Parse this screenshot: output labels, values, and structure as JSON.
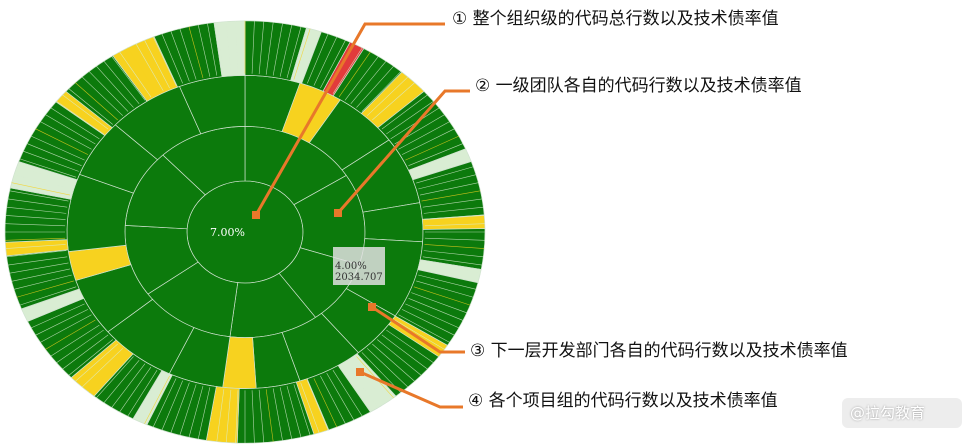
{
  "chart_data": {
    "type": "sunburst",
    "center_label": "7.00%",
    "tooltip": {
      "percent": "4.00%",
      "value": "2034.707"
    },
    "colors": {
      "ok": "#0c7a0c",
      "warning": "#f7d21f",
      "critical": "#e23b3b",
      "light": "#d9edd3",
      "ring_line": "#cfe2cf",
      "callout_line": "#e8782a"
    },
    "rings": [
      {
        "level": 1,
        "segments": [
          {
            "share": 1,
            "status": "ok"
          }
        ]
      },
      {
        "level": 2,
        "segments": [
          {
            "share": 0.16,
            "status": "ok"
          },
          {
            "share": 0.14,
            "status": "ok"
          },
          {
            "share": 0.1,
            "status": "ok"
          },
          {
            "share": 0.12,
            "status": "ok"
          },
          {
            "share": 0.13,
            "status": "ok"
          },
          {
            "share": 0.11,
            "status": "ok"
          },
          {
            "share": 0.12,
            "status": "ok"
          },
          {
            "share": 0.12,
            "status": "ok"
          }
        ]
      },
      {
        "level": 3,
        "segments": [
          {
            "share": 0.05,
            "status": "ok"
          },
          {
            "share": 0.04,
            "status": "warning"
          },
          {
            "share": 0.06,
            "status": "ok"
          },
          {
            "share": 0.07,
            "status": "ok"
          },
          {
            "share": 0.04,
            "status": "ok"
          },
          {
            "share": 0.08,
            "status": "ok"
          },
          {
            "share": 0.05,
            "status": "ok"
          },
          {
            "share": 0.06,
            "status": "ok"
          },
          {
            "share": 0.04,
            "status": "ok"
          },
          {
            "share": 0.03,
            "status": "warning"
          },
          {
            "share": 0.05,
            "status": "ok"
          },
          {
            "share": 0.07,
            "status": "ok"
          },
          {
            "share": 0.06,
            "status": "ok"
          },
          {
            "share": 0.03,
            "status": "warning"
          },
          {
            "share": 0.08,
            "status": "ok"
          },
          {
            "share": 0.06,
            "status": "ok"
          },
          {
            "share": 0.07,
            "status": "ok"
          },
          {
            "share": 0.06,
            "status": "ok"
          }
        ]
      },
      {
        "level": 4,
        "segments": [
          {
            "share": 0.04,
            "status": "ok"
          },
          {
            "share": 0.01,
            "status": "light"
          },
          {
            "share": 0.02,
            "status": "ok"
          },
          {
            "share": 0.01,
            "status": "critical"
          },
          {
            "share": 0.03,
            "status": "ok"
          },
          {
            "share": 0.02,
            "status": "warning"
          },
          {
            "share": 0.05,
            "status": "ok"
          },
          {
            "share": 0.01,
            "status": "light"
          },
          {
            "share": 0.04,
            "status": "ok"
          },
          {
            "share": 0.01,
            "status": "warning"
          },
          {
            "share": 0.03,
            "status": "ok"
          },
          {
            "share": 0.01,
            "status": "light"
          },
          {
            "share": 0.05,
            "status": "ok"
          },
          {
            "share": 0.01,
            "status": "warning"
          },
          {
            "share": 0.04,
            "status": "ok"
          },
          {
            "share": 0.02,
            "status": "light"
          },
          {
            "share": 0.03,
            "status": "ok"
          },
          {
            "share": 0.01,
            "status": "warning"
          },
          {
            "share": 0.05,
            "status": "ok"
          },
          {
            "share": 0.02,
            "status": "warning"
          },
          {
            "share": 0.04,
            "status": "ok"
          },
          {
            "share": 0.01,
            "status": "light"
          },
          {
            "share": 0.03,
            "status": "ok"
          },
          {
            "share": 0.02,
            "status": "warning"
          },
          {
            "share": 0.05,
            "status": "ok"
          },
          {
            "share": 0.01,
            "status": "light"
          },
          {
            "share": 0.04,
            "status": "ok"
          },
          {
            "share": 0.01,
            "status": "warning"
          },
          {
            "share": 0.04,
            "status": "ok"
          },
          {
            "share": 0.02,
            "status": "light"
          },
          {
            "share": 0.05,
            "status": "ok"
          },
          {
            "share": 0.01,
            "status": "warning"
          },
          {
            "share": 0.04,
            "status": "ok"
          },
          {
            "share": 0.03,
            "status": "warning"
          },
          {
            "share": 0.04,
            "status": "ok"
          },
          {
            "share": 0.02,
            "status": "light"
          }
        ]
      }
    ],
    "annotations": [
      "① 整个组织级的代码总行数以及技术债率值",
      "② 一级团队各自的代码行数以及技术债率值",
      "③ 下一层开发部门各自的代码行数以及技术债率值",
      "④ 各个项目组的代码行数以及技术债率值"
    ]
  },
  "watermark": "@拉勾教育"
}
